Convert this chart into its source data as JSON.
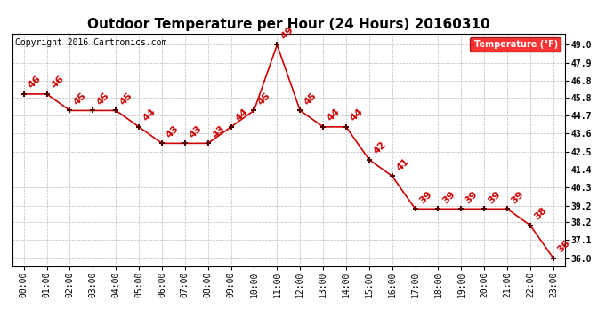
{
  "title": "Outdoor Temperature per Hour (24 Hours) 20160310",
  "copyright": "Copyright 2016 Cartronics.com",
  "legend_label": "Temperature (°F)",
  "hours": [
    "00:00",
    "01:00",
    "02:00",
    "03:00",
    "04:00",
    "05:00",
    "06:00",
    "07:00",
    "08:00",
    "09:00",
    "10:00",
    "11:00",
    "12:00",
    "13:00",
    "14:00",
    "15:00",
    "16:00",
    "17:00",
    "18:00",
    "19:00",
    "20:00",
    "21:00",
    "22:00",
    "23:00"
  ],
  "temperatures": [
    46,
    46,
    45,
    45,
    45,
    44,
    43,
    43,
    43,
    44,
    45,
    49,
    45,
    44,
    44,
    42,
    41,
    39,
    39,
    39,
    39,
    39,
    38,
    36
  ],
  "line_color": "#cc0000",
  "marker_color": "#550000",
  "bg_color": "#ffffff",
  "grid_color": "#bbbbbb",
  "yticks": [
    36.0,
    37.1,
    38.2,
    39.2,
    40.3,
    41.4,
    42.5,
    43.6,
    44.7,
    45.8,
    46.8,
    47.9,
    49.0
  ],
  "ylim_min": 35.5,
  "ylim_max": 49.7,
  "title_fontsize": 11,
  "tick_fontsize": 7,
  "annotation_fontsize": 8,
  "copyright_fontsize": 7
}
